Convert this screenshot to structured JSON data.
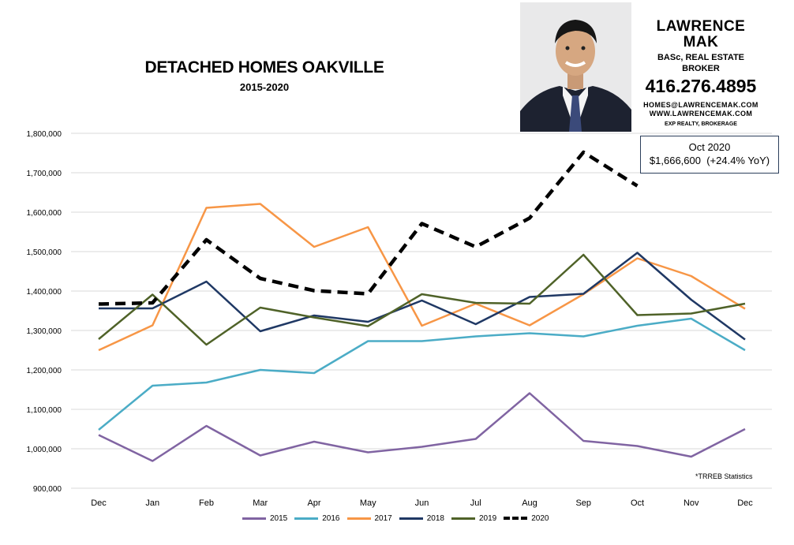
{
  "chart_data": {
    "type": "line",
    "title": "DETACHED HOMES OAKVILLE",
    "subtitle": "2015-2020",
    "categories": [
      "Dec",
      "Jan",
      "Feb",
      "Mar",
      "Apr",
      "May",
      "Jun",
      "Jul",
      "Aug",
      "Sep",
      "Oct",
      "Nov",
      "Dec"
    ],
    "y_ticks": [
      "900,000",
      "1,000,000",
      "1,100,000",
      "1,200,000",
      "1,300,000",
      "1,400,000",
      "1,500,000",
      "1,600,000",
      "1,700,000",
      "1,800,000"
    ],
    "ylim": [
      900000,
      1800000
    ],
    "grid": true,
    "legend_position": "bottom",
    "series": [
      {
        "name": "2015",
        "color": "#8064a2",
        "dashed": false,
        "values": [
          1035000,
          969000,
          1058000,
          983000,
          1018000,
          991000,
          1005000,
          1025000,
          1141000,
          1020000,
          1007000,
          980000,
          1050000
        ]
      },
      {
        "name": "2016",
        "color": "#4bacc6",
        "dashed": false,
        "values": [
          1048000,
          1160000,
          1168000,
          1200000,
          1192000,
          1273000,
          1273000,
          1285000,
          1293000,
          1285000,
          1312000,
          1330000,
          1250000
        ]
      },
      {
        "name": "2017",
        "color": "#f79646",
        "dashed": false,
        "values": [
          1250000,
          1313000,
          1611000,
          1621000,
          1512000,
          1562000,
          1312000,
          1368000,
          1313000,
          1392000,
          1483000,
          1438000,
          1355000
        ]
      },
      {
        "name": "2018",
        "color": "#1f3864",
        "dashed": false,
        "values": [
          1356000,
          1356000,
          1424000,
          1298000,
          1338000,
          1322000,
          1376000,
          1316000,
          1385000,
          1393000,
          1497000,
          1378000,
          1277000
        ]
      },
      {
        "name": "2019",
        "color": "#4f6228",
        "dashed": false,
        "values": [
          1278000,
          1391000,
          1264000,
          1358000,
          1333000,
          1311000,
          1392000,
          1370000,
          1368000,
          1492000,
          1339000,
          1343000,
          1368000
        ]
      },
      {
        "name": "2020",
        "color": "#000000",
        "dashed": true,
        "values": [
          1367000,
          1370000,
          1530000,
          1432000,
          1401000,
          1393000,
          1571000,
          1512000,
          1585000,
          1752000,
          1666600,
          null,
          null
        ]
      }
    ]
  },
  "branding": {
    "name": "LAWRENCE MAK",
    "credentials": "BASc, REAL ESTATE BROKER",
    "phone": "416.276.4895",
    "email": "HOMES@LAWRENCEMAK.COM",
    "website": "WWW.LAWRENCEMAK.COM",
    "brokerage": "EXP REALTY, BROKERAGE"
  },
  "callout": {
    "line1": "Oct 2020",
    "line2": "$1,666,600  (+24.4% YoY)"
  },
  "footnote": "*TRREB Statistics"
}
